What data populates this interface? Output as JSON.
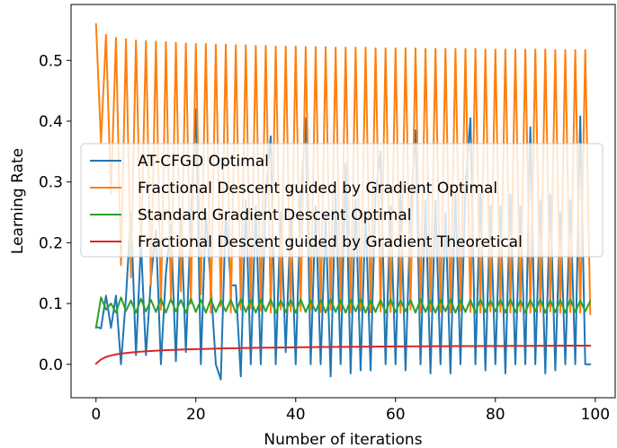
{
  "chart_data": {
    "type": "line",
    "xlabel": "Number of iterations",
    "ylabel": "Learning Rate",
    "xlim": [
      -5,
      104
    ],
    "ylim": [
      -0.055,
      0.592
    ],
    "xticks": [
      0,
      20,
      40,
      60,
      80,
      100
    ],
    "yticks": [
      0.0,
      0.1,
      0.2,
      0.3,
      0.4,
      0.5
    ],
    "xtick_labels": [
      "0",
      "20",
      "40",
      "60",
      "80",
      "100"
    ],
    "ytick_labels": [
      "0.0",
      "0.1",
      "0.2",
      "0.3",
      "0.4",
      "0.5"
    ],
    "grid": false,
    "legend_position": "center-left",
    "series": [
      {
        "name": "AT-CFGD Optimal",
        "color": "#1f77b4",
        "x": [
          0,
          1,
          2,
          3,
          4,
          5,
          6,
          7,
          8,
          9,
          10,
          11,
          12,
          13,
          14,
          15,
          16,
          17,
          18,
          19,
          20,
          21,
          22,
          23,
          24,
          25,
          26,
          27,
          28,
          29,
          30,
          31,
          32,
          33,
          34,
          35,
          36,
          37,
          38,
          39,
          40,
          41,
          42,
          43,
          44,
          45,
          46,
          47,
          48,
          49,
          50,
          51,
          52,
          53,
          54,
          55,
          56,
          57,
          58,
          59,
          60,
          61,
          62,
          63,
          64,
          65,
          66,
          67,
          68,
          69,
          70,
          71,
          72,
          73,
          74,
          75,
          76,
          77,
          78,
          79,
          80,
          81,
          82,
          83,
          84,
          85,
          86,
          87,
          88,
          89,
          90,
          91,
          92,
          93,
          94,
          95,
          96,
          97,
          98,
          99
        ],
        "y": [
          0.062,
          0.059,
          0.113,
          0.06,
          0.113,
          0.0,
          0.11,
          0.25,
          0.015,
          0.2,
          0.015,
          0.14,
          0.22,
          0.0,
          0.15,
          0.23,
          0.005,
          0.25,
          0.02,
          0.24,
          0.42,
          0.0,
          0.25,
          0.13,
          0.0,
          -0.025,
          0.25,
          0.13,
          0.13,
          -0.02,
          0.27,
          0.0,
          0.26,
          0.0,
          0.28,
          0.375,
          0.0,
          0.25,
          0.02,
          0.24,
          0.0,
          0.27,
          0.405,
          0.0,
          0.26,
          0.0,
          0.24,
          -0.02,
          0.28,
          0.0,
          0.33,
          -0.015,
          0.27,
          -0.01,
          0.25,
          -0.01,
          0.28,
          0.35,
          0.0,
          0.26,
          0.0,
          0.28,
          -0.01,
          0.25,
          0.385,
          0.0,
          0.27,
          -0.015,
          0.27,
          0.0,
          0.25,
          -0.015,
          0.28,
          0.0,
          0.29,
          0.405,
          0.0,
          0.28,
          -0.01,
          0.26,
          0.0,
          0.26,
          -0.015,
          0.28,
          0.0,
          0.26,
          0.0,
          0.39,
          0.0,
          0.27,
          -0.015,
          0.28,
          -0.01,
          0.25,
          0.0,
          0.27,
          0.0,
          0.408,
          0.0,
          0.0
        ]
      },
      {
        "name": "Fractional Descent guided by Gradient Optimal",
        "color": "#ff7f0e",
        "x": [
          0,
          1,
          2,
          3,
          4,
          5,
          6,
          7,
          8,
          9,
          10,
          11,
          12,
          13,
          14,
          15,
          16,
          17,
          18,
          19,
          20,
          21,
          22,
          23,
          24,
          25,
          26,
          27,
          28,
          29,
          30,
          31,
          32,
          33,
          34,
          35,
          36,
          37,
          38,
          39,
          40,
          41,
          42,
          43,
          44,
          45,
          46,
          47,
          48,
          49,
          50,
          51,
          52,
          53,
          54,
          55,
          56,
          57,
          58,
          59,
          60,
          61,
          62,
          63,
          64,
          65,
          66,
          67,
          68,
          69,
          70,
          71,
          72,
          73,
          74,
          75,
          76,
          77,
          78,
          79,
          80,
          81,
          82,
          83,
          84,
          85,
          86,
          87,
          88,
          89,
          90,
          91,
          92,
          93,
          94,
          95,
          96,
          97,
          98,
          99
        ],
        "y": [
          0.56,
          0.365,
          0.542,
          0.28,
          0.537,
          0.163,
          0.535,
          0.143,
          0.533,
          0.19,
          0.532,
          0.13,
          0.531,
          0.09,
          0.53,
          0.105,
          0.529,
          0.12,
          0.528,
          0.1,
          0.527,
          0.115,
          0.527,
          0.085,
          0.526,
          0.095,
          0.526,
          0.085,
          0.525,
          0.09,
          0.525,
          0.092,
          0.524,
          0.088,
          0.524,
          0.085,
          0.523,
          0.09,
          0.523,
          0.087,
          0.523,
          0.088,
          0.522,
          0.09,
          0.522,
          0.086,
          0.522,
          0.09,
          0.521,
          0.088,
          0.521,
          0.085,
          0.521,
          0.088,
          0.521,
          0.085,
          0.52,
          0.087,
          0.52,
          0.086,
          0.52,
          0.085,
          0.52,
          0.09,
          0.52,
          0.085,
          0.519,
          0.087,
          0.519,
          0.086,
          0.519,
          0.085,
          0.519,
          0.088,
          0.519,
          0.086,
          0.519,
          0.085,
          0.518,
          0.087,
          0.518,
          0.086,
          0.518,
          0.085,
          0.518,
          0.087,
          0.518,
          0.085,
          0.518,
          0.086,
          0.518,
          0.087,
          0.517,
          0.085,
          0.517,
          0.086,
          0.517,
          0.085,
          0.517,
          0.082
        ]
      },
      {
        "name": "Standard Gradient Descent Optimal",
        "color": "#2ca02c",
        "x": [
          0,
          1,
          2,
          3,
          4,
          5,
          6,
          7,
          8,
          9,
          10,
          11,
          12,
          13,
          14,
          15,
          16,
          17,
          18,
          19,
          20,
          21,
          22,
          23,
          24,
          25,
          26,
          27,
          28,
          29,
          30,
          31,
          32,
          33,
          34,
          35,
          36,
          37,
          38,
          39,
          40,
          41,
          42,
          43,
          44,
          45,
          46,
          47,
          48,
          49,
          50,
          51,
          52,
          53,
          54,
          55,
          56,
          57,
          58,
          59,
          60,
          61,
          62,
          63,
          64,
          65,
          66,
          67,
          68,
          69,
          70,
          71,
          72,
          73,
          74,
          75,
          76,
          77,
          78,
          79,
          80,
          81,
          82,
          83,
          84,
          85,
          86,
          87,
          88,
          89,
          90,
          91,
          92,
          93,
          94,
          95,
          96,
          97,
          98,
          99
        ],
        "y": [
          0.06,
          0.11,
          0.09,
          0.1,
          0.085,
          0.11,
          0.088,
          0.105,
          0.085,
          0.108,
          0.087,
          0.106,
          0.086,
          0.108,
          0.085,
          0.107,
          0.087,
          0.106,
          0.085,
          0.108,
          0.086,
          0.106,
          0.085,
          0.107,
          0.086,
          0.105,
          0.087,
          0.106,
          0.085,
          0.107,
          0.086,
          0.105,
          0.085,
          0.106,
          0.087,
          0.107,
          0.085,
          0.105,
          0.086,
          0.106,
          0.085,
          0.107,
          0.086,
          0.105,
          0.087,
          0.106,
          0.085,
          0.107,
          0.086,
          0.105,
          0.085,
          0.106,
          0.087,
          0.107,
          0.085,
          0.105,
          0.086,
          0.106,
          0.085,
          0.107,
          0.086,
          0.105,
          0.087,
          0.106,
          0.085,
          0.107,
          0.086,
          0.105,
          0.085,
          0.106,
          0.087,
          0.107,
          0.085,
          0.105,
          0.086,
          0.106,
          0.085,
          0.107,
          0.086,
          0.105,
          0.087,
          0.106,
          0.085,
          0.107,
          0.086,
          0.105,
          0.085,
          0.106,
          0.087,
          0.107,
          0.085,
          0.105,
          0.086,
          0.106,
          0.085,
          0.107,
          0.086,
          0.105,
          0.087,
          0.104
        ]
      },
      {
        "name": "Fractional Descent guided by Gradient Theoretical",
        "color": "#d62728",
        "x": [
          0,
          1,
          2,
          3,
          4,
          5,
          6,
          7,
          8,
          9,
          10,
          11,
          12,
          13,
          14,
          15,
          16,
          17,
          18,
          19,
          20,
          21,
          22,
          23,
          24,
          25,
          26,
          27,
          28,
          29,
          30,
          31,
          32,
          33,
          34,
          35,
          36,
          37,
          38,
          39,
          40,
          41,
          42,
          43,
          44,
          45,
          46,
          47,
          48,
          49,
          50,
          51,
          52,
          53,
          54,
          55,
          56,
          57,
          58,
          59,
          60,
          61,
          62,
          63,
          64,
          65,
          66,
          67,
          68,
          69,
          70,
          71,
          72,
          73,
          74,
          75,
          76,
          77,
          78,
          79,
          80,
          81,
          82,
          83,
          84,
          85,
          86,
          87,
          88,
          89,
          90,
          91,
          92,
          93,
          94,
          95,
          96,
          97,
          98,
          99
        ],
        "y": [
          0.001,
          0.008,
          0.012,
          0.0145,
          0.0162,
          0.0175,
          0.0185,
          0.0194,
          0.0201,
          0.0208,
          0.0214,
          0.0219,
          0.0224,
          0.0228,
          0.0232,
          0.0235,
          0.0239,
          0.0242,
          0.0245,
          0.0247,
          0.025,
          0.0252,
          0.0254,
          0.0256,
          0.0258,
          0.026,
          0.0262,
          0.0264,
          0.0265,
          0.0267,
          0.0268,
          0.0269,
          0.0271,
          0.0272,
          0.0273,
          0.0274,
          0.0275,
          0.0276,
          0.0277,
          0.0278,
          0.0279,
          0.028,
          0.0281,
          0.0282,
          0.0283,
          0.0284,
          0.0284,
          0.0285,
          0.0286,
          0.0287,
          0.0287,
          0.0288,
          0.0289,
          0.0289,
          0.029,
          0.029,
          0.0291,
          0.0292,
          0.0292,
          0.0293,
          0.0293,
          0.0294,
          0.0294,
          0.0295,
          0.0295,
          0.0296,
          0.0296,
          0.0297,
          0.0297,
          0.0298,
          0.0298,
          0.0298,
          0.0299,
          0.0299,
          0.03,
          0.03,
          0.03,
          0.0301,
          0.0301,
          0.0301,
          0.0302,
          0.0302,
          0.0302,
          0.0303,
          0.0303,
          0.0303,
          0.0304,
          0.0304,
          0.0304,
          0.0305,
          0.0305,
          0.0305,
          0.0305,
          0.0306,
          0.0306,
          0.0306,
          0.0307,
          0.0307,
          0.0307,
          0.0307
        ]
      }
    ]
  }
}
